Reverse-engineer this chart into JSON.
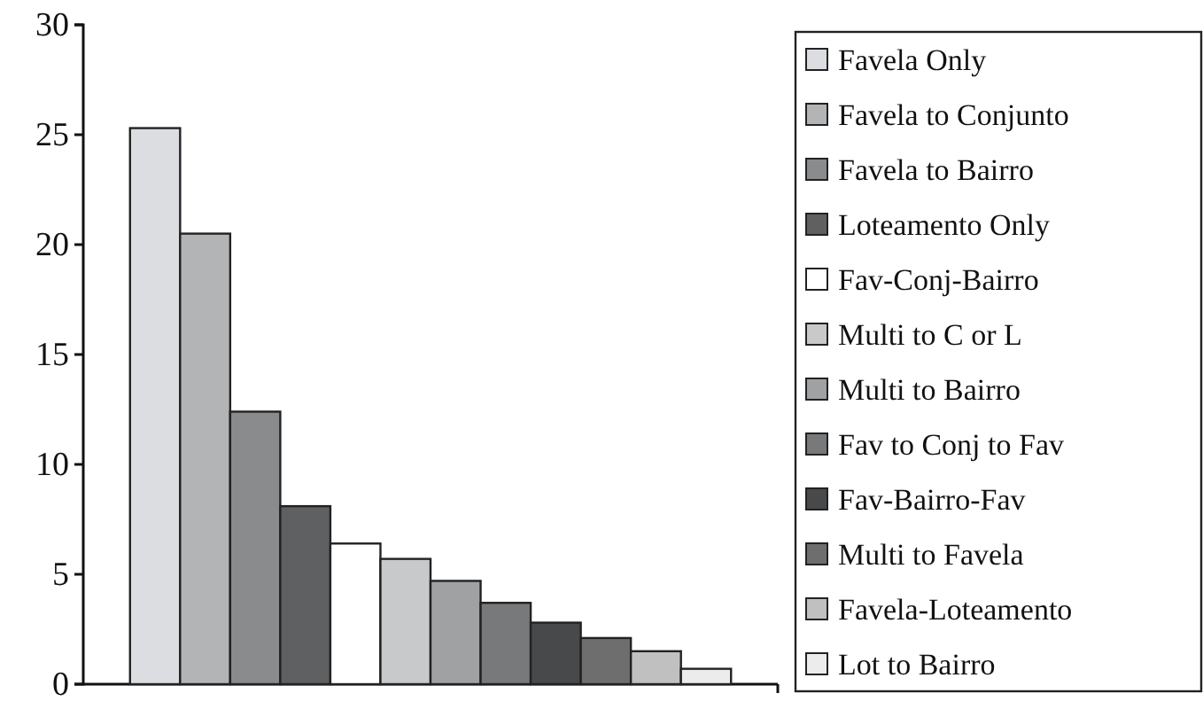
{
  "chart_data": {
    "type": "bar",
    "categories": [
      null
    ],
    "ylim": [
      0,
      30
    ],
    "yticks": [
      0,
      5,
      10,
      15,
      20,
      25,
      30
    ],
    "legend": "right",
    "series": [
      {
        "name": "Favela Only",
        "color": "#dcdde0",
        "values": [
          25.3
        ]
      },
      {
        "name": "Favela to Conjunto",
        "color": "#b3b4b6",
        "values": [
          20.5
        ]
      },
      {
        "name": "Favela to Bairro",
        "color": "#8a8b8d",
        "values": [
          12.4
        ]
      },
      {
        "name": "Loteamento Only",
        "color": "#5f6062",
        "values": [
          8.1
        ]
      },
      {
        "name": "Fav-Conj-Bairro",
        "color": "#ffffff",
        "values": [
          6.4
        ]
      },
      {
        "name": "Multi to C or L",
        "color": "#c8c9cb",
        "values": [
          5.7
        ]
      },
      {
        "name": "Multi to Bairro",
        "color": "#a0a1a3",
        "values": [
          4.7
        ]
      },
      {
        "name": "Fav to Conj to Fav",
        "color": "#78797b",
        "values": [
          3.7
        ]
      },
      {
        "name": "Fav-Bairro-Fav",
        "color": "#48494b",
        "values": [
          2.8
        ]
      },
      {
        "name": "Multi to Favela",
        "color": "#6e6e6e",
        "values": [
          2.1
        ]
      },
      {
        "name": "Favela-Loteamento",
        "color": "#c0c0c0",
        "values": [
          1.5
        ]
      },
      {
        "name": "Lot to Bairro",
        "color": "#ececec",
        "values": [
          0.7
        ]
      }
    ]
  }
}
